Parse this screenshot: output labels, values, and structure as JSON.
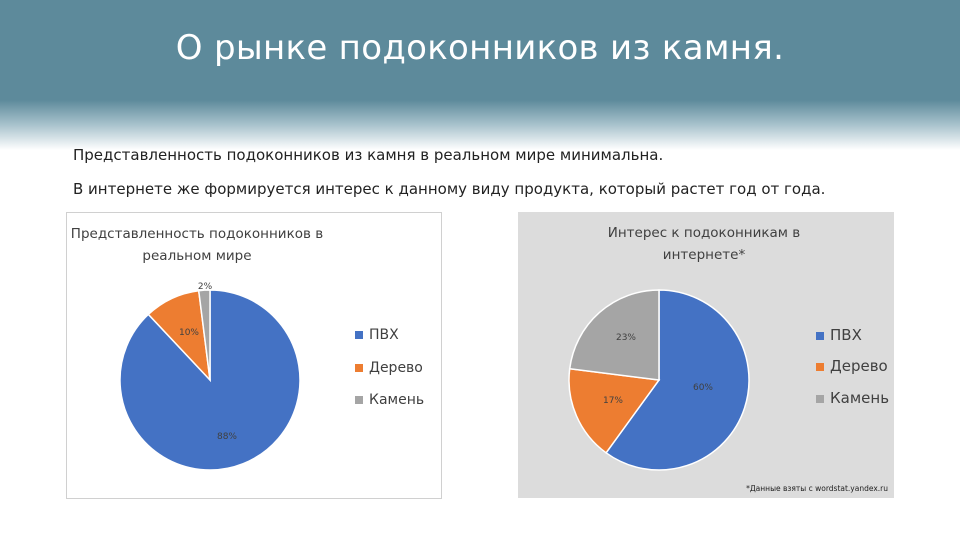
{
  "slide": {
    "title": "О рынке подоконников из камня.",
    "lines": [
      "Представленность подоконников из камня в реальном мире минимальна.",
      "В интернете же формируется интерес к данному виду продукта, который растет год от года."
    ]
  },
  "chart_data": [
    {
      "type": "pie",
      "title": [
        "Представленность подоконников в",
        "реальном мире"
      ],
      "categories": [
        "ПВХ",
        "Дерево",
        "Камень"
      ],
      "values": [
        88,
        10,
        2
      ],
      "data_labels": [
        "88%",
        "10%",
        "2%"
      ],
      "colors": [
        "#4472c4",
        "#ed7d31",
        "#a5a5a5"
      ],
      "legend": "right",
      "background": "#ffffff"
    },
    {
      "type": "pie",
      "title": [
        "Интерес к подоконникам в",
        "интернете*"
      ],
      "categories": [
        "ПВХ",
        "Дерево",
        "Камень"
      ],
      "values": [
        60,
        17,
        23
      ],
      "data_labels": [
        "60%",
        "17%",
        "23%"
      ],
      "colors": [
        "#4472c4",
        "#ed7d31",
        "#a5a5a5"
      ],
      "legend": "right",
      "background": "#dcdcdc",
      "footnote": "*Данные взяты с wordstat.yandex.ru"
    }
  ]
}
